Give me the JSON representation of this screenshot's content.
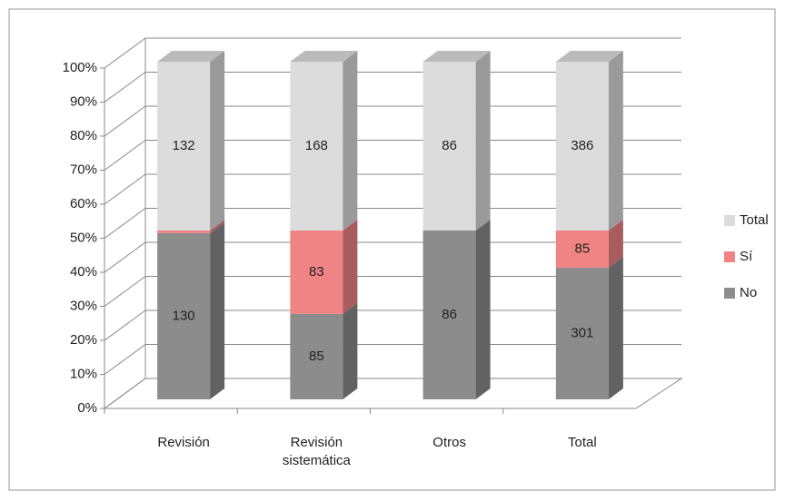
{
  "chart_data": {
    "type": "bar",
    "stacking": "percent",
    "categories": [
      "Revisión",
      "Revisión sistemática",
      "Otros",
      "Total"
    ],
    "series": [
      {
        "name": "No",
        "color": "#8c8c8c",
        "values": [
          130,
          85,
          86,
          301
        ]
      },
      {
        "name": "Sí",
        "color": "#f08484",
        "values": [
          2,
          83,
          0,
          85
        ]
      },
      {
        "name": "Total",
        "color": "#dcdcdc",
        "values": [
          132,
          168,
          86,
          386
        ]
      }
    ],
    "ylim": [
      0,
      100
    ],
    "yticks": [
      {
        "value": 0,
        "label": "0%"
      },
      {
        "value": 10,
        "label": "10%"
      },
      {
        "value": 20,
        "label": "20%"
      },
      {
        "value": 30,
        "label": "30%"
      },
      {
        "value": 40,
        "label": "40%"
      },
      {
        "value": 50,
        "label": "50%"
      },
      {
        "value": 60,
        "label": "60%"
      },
      {
        "value": 70,
        "label": "70%"
      },
      {
        "value": 80,
        "label": "80%"
      },
      {
        "value": 90,
        "label": "90%"
      },
      {
        "value": 100,
        "label": "100%"
      }
    ],
    "grid": true,
    "legend": "right"
  }
}
